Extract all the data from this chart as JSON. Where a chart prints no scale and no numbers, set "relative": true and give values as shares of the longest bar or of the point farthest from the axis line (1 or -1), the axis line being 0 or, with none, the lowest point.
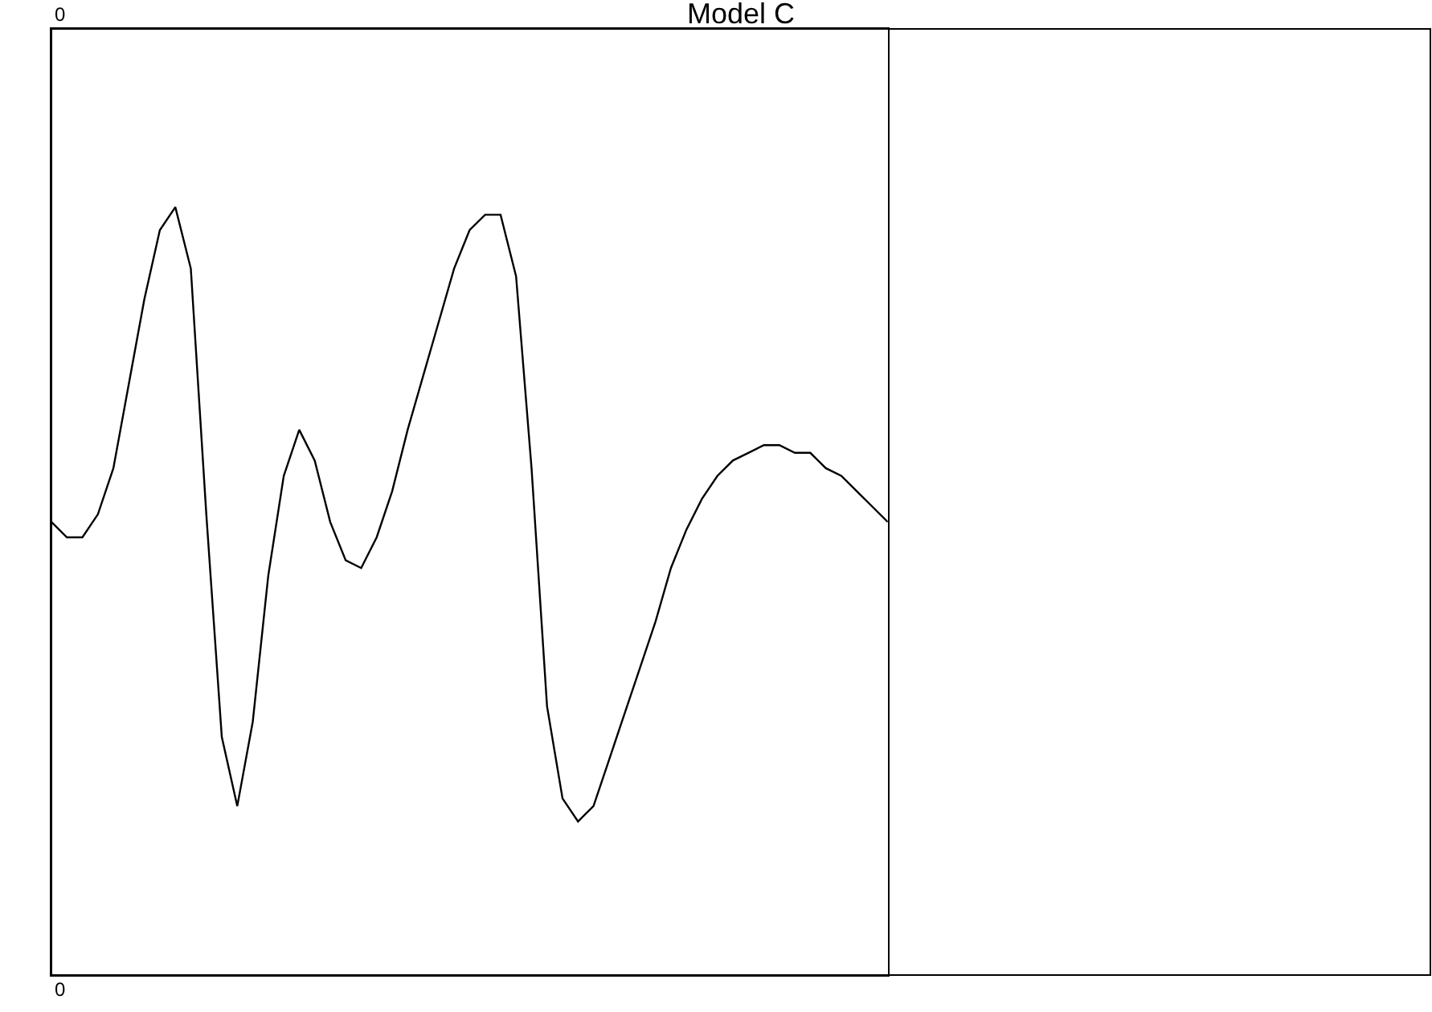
{
  "chart_data": {
    "type": "line",
    "title": "Model C",
    "relative": true,
    "color": "#000000",
    "marker": "none",
    "line_style": "solid",
    "legend": false,
    "categories": [
      null,
      null,
      null,
      null,
      null,
      null,
      null,
      null,
      null,
      null,
      null,
      null,
      null,
      null,
      null,
      null,
      null,
      null,
      null,
      null,
      null,
      null,
      null,
      null,
      null,
      null,
      null,
      null,
      null,
      null,
      null,
      null,
      null,
      null,
      null,
      null,
      null,
      null,
      null,
      null,
      null,
      null,
      null,
      null,
      null,
      null,
      null,
      null,
      null,
      null,
      null,
      null,
      null,
      null,
      null
    ],
    "values": [
      0.59,
      0.57,
      0.57,
      0.6,
      0.66,
      0.77,
      0.88,
      0.97,
      1.0,
      0.92,
      0.6,
      0.31,
      0.22,
      0.33,
      0.52,
      0.65,
      0.71,
      0.67,
      0.59,
      0.54,
      0.53,
      0.57,
      0.63,
      0.71,
      0.78,
      0.85,
      0.92,
      0.97,
      0.99,
      0.99,
      0.91,
      0.66,
      0.35,
      0.23,
      0.2,
      0.22,
      0.28,
      0.34,
      0.4,
      0.46,
      0.53,
      0.58,
      0.62,
      0.65,
      0.67,
      0.68,
      0.69,
      0.69,
      0.68,
      0.68,
      0.66,
      0.65,
      0.63,
      0.61,
      0.59
    ],
    "annotations": [
      "0",
      "0"
    ]
  }
}
